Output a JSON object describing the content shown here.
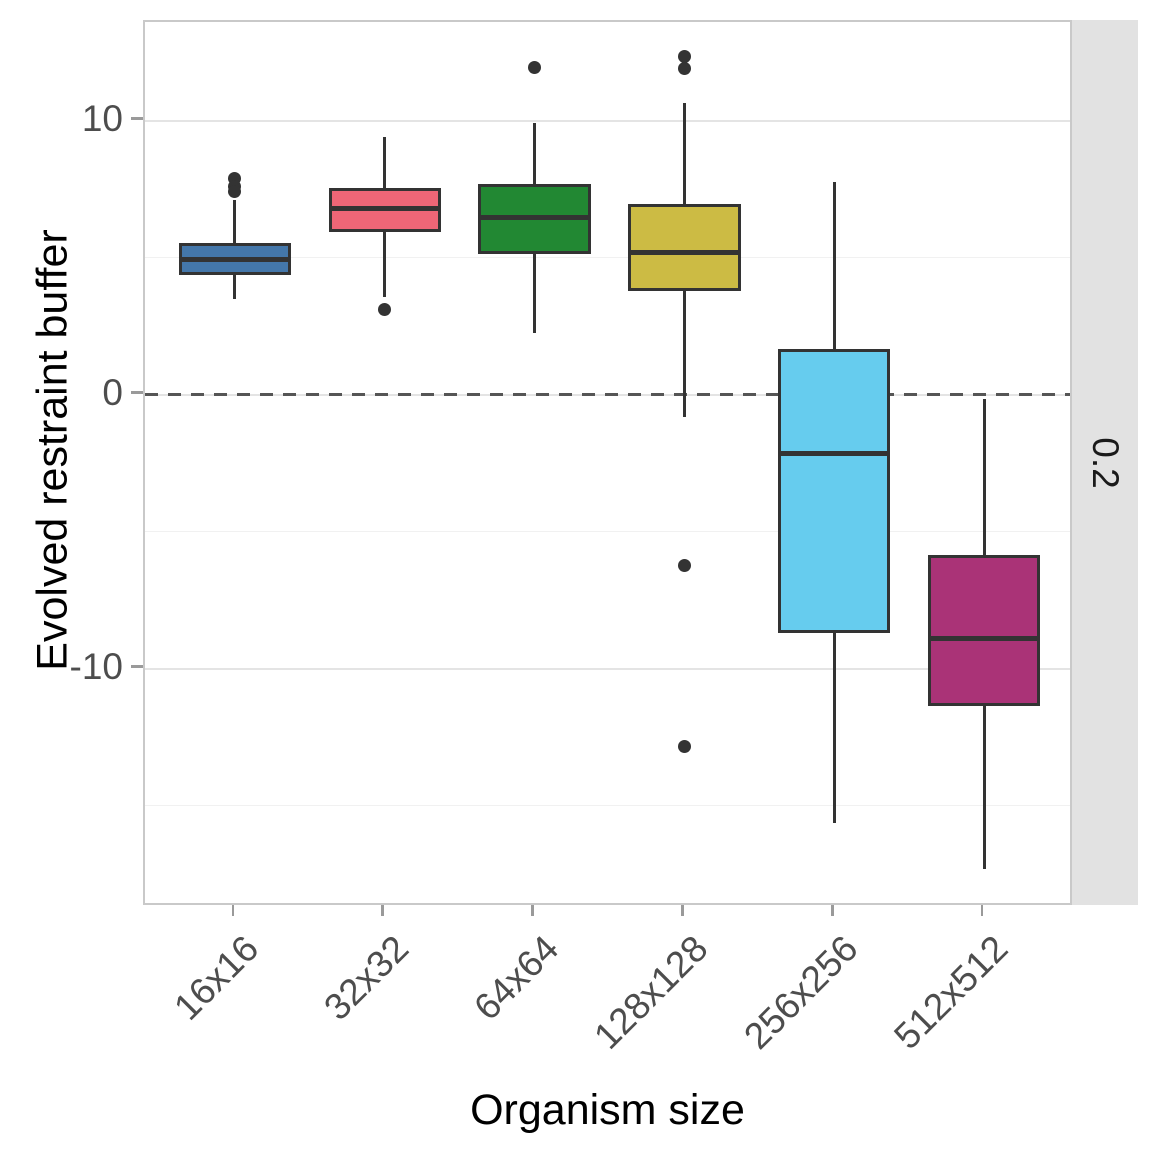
{
  "chart_data": {
    "type": "boxplot",
    "xlabel": "Organism size",
    "ylabel": "Evolved restraint buffer",
    "facet_label": "0.2",
    "categories": [
      "16x16",
      "32x32",
      "64x64",
      "128x128",
      "256x256",
      "512x512"
    ],
    "yticks": [
      10,
      0,
      -10
    ],
    "yticks_minor": [
      5,
      -5,
      -15
    ],
    "ylim": [
      -18.7,
      13.6
    ],
    "reference_line_y": 0,
    "grid": true,
    "legend_position": "none",
    "series": [
      {
        "category": "16x16",
        "color": "#4477AA",
        "q1": 4.35,
        "median": 4.95,
        "q3": 5.55,
        "whisker_low": 3.5,
        "whisker_high": 7.1,
        "outliers": [
          7.9,
          7.6,
          7.4
        ]
      },
      {
        "category": "32x32",
        "color": "#EE6677",
        "q1": 5.95,
        "median": 6.8,
        "q3": 7.55,
        "whisker_low": 3.55,
        "whisker_high": 9.4,
        "outliers": [
          3.1
        ]
      },
      {
        "category": "64x64",
        "color": "#228833",
        "q1": 5.15,
        "median": 6.45,
        "q3": 7.7,
        "whisker_low": 2.25,
        "whisker_high": 9.9,
        "outliers": [
          11.95
        ]
      },
      {
        "category": "128x128",
        "color": "#CCBB44",
        "q1": 3.8,
        "median": 5.2,
        "q3": 6.95,
        "whisker_low": -0.8,
        "whisker_high": 10.65,
        "outliers": [
          12.35,
          11.9,
          -6.25,
          -12.85
        ]
      },
      {
        "category": "256x256",
        "color": "#66CCEE",
        "q1": -8.7,
        "median": -2.15,
        "q3": 1.65,
        "whisker_low": -15.65,
        "whisker_high": 7.75,
        "outliers": []
      },
      {
        "category": "512x512",
        "color": "#AA3377",
        "q1": -11.35,
        "median": -8.9,
        "q3": -5.85,
        "whisker_low": -17.3,
        "whisker_high": -0.15,
        "outliers": []
      }
    ],
    "style": {
      "stroke": "#333333",
      "grid_major": "#e4e4e4",
      "grid_minor": "#f1f1f1",
      "axis_line": "#c9c9c9",
      "tick_mark": "#9a9a9a",
      "tick_label": "#4d4d4d",
      "title_color": "#000000",
      "strip_bg": "#e2e2e2",
      "strip_text": "#1a1a1a",
      "reference_line": "#555555",
      "background": "#ffffff"
    }
  }
}
